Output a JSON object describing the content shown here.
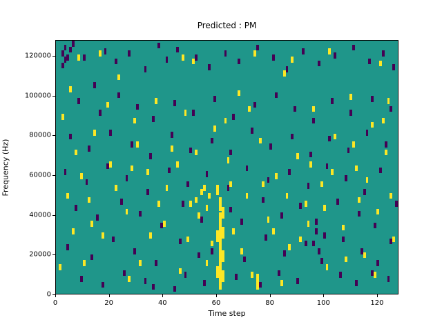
{
  "chart_data": {
    "type": "heatmap",
    "title": "Predicted : PM",
    "xlabel": "Time step",
    "ylabel": "Frequency (Hz)",
    "x_range": [
      0,
      128
    ],
    "y_range_hz": [
      0,
      128000
    ],
    "x_ticks": [
      0,
      20,
      40,
      60,
      80,
      100,
      120
    ],
    "y_ticks": [
      0,
      20000,
      40000,
      60000,
      80000,
      100000,
      120000
    ],
    "grid": false,
    "legend": "none",
    "colormap": "viridis",
    "colors": {
      "background": "#1f968a",
      "low": "#440154",
      "high": "#fde725"
    },
    "cell_format": "[time_step, freq_x1000Hz, height_x1000Hz(optional, default 3)]",
    "cells_low": [
      [
        2,
        120
      ],
      [
        3,
        123
      ],
      [
        4,
        118
      ],
      [
        5,
        122
      ],
      [
        3,
        117
      ],
      [
        6,
        125
      ],
      [
        2,
        114
      ],
      [
        10,
        118
      ],
      [
        14,
        104
      ],
      [
        18,
        121
      ],
      [
        22,
        116
      ],
      [
        27,
        120
      ],
      [
        33,
        112
      ],
      [
        38,
        124
      ],
      [
        41,
        117
      ],
      [
        45,
        122
      ],
      [
        52,
        118
      ],
      [
        57,
        113
      ],
      [
        63,
        120
      ],
      [
        68,
        116
      ],
      [
        75,
        123
      ],
      [
        81,
        118
      ],
      [
        86,
        112
      ],
      [
        92,
        121
      ],
      [
        98,
        115
      ],
      [
        104,
        119
      ],
      [
        111,
        123
      ],
      [
        117,
        116
      ],
      [
        122,
        120
      ],
      [
        126,
        113
      ],
      [
        8,
        96
      ],
      [
        16,
        90
      ],
      [
        23,
        99
      ],
      [
        30,
        93
      ],
      [
        36,
        87
      ],
      [
        44,
        95
      ],
      [
        51,
        90
      ],
      [
        59,
        97
      ],
      [
        66,
        88
      ],
      [
        74,
        94
      ],
      [
        82,
        99
      ],
      [
        89,
        92
      ],
      [
        96,
        86
      ],
      [
        103,
        96
      ],
      [
        110,
        90
      ],
      [
        118,
        97
      ],
      [
        125,
        92
      ],
      [
        5,
        78
      ],
      [
        12,
        72
      ],
      [
        20,
        80
      ],
      [
        28,
        74
      ],
      [
        35,
        68
      ],
      [
        43,
        79
      ],
      [
        50,
        71
      ],
      [
        58,
        76
      ],
      [
        65,
        70
      ],
      [
        73,
        81
      ],
      [
        80,
        73
      ],
      [
        88,
        78
      ],
      [
        95,
        69
      ],
      [
        102,
        77
      ],
      [
        109,
        71
      ],
      [
        116,
        80
      ],
      [
        123,
        74
      ],
      [
        3,
        60
      ],
      [
        11,
        55
      ],
      [
        19,
        63
      ],
      [
        26,
        57
      ],
      [
        34,
        50
      ],
      [
        42,
        61
      ],
      [
        49,
        54
      ],
      [
        56,
        59
      ],
      [
        64,
        52
      ],
      [
        71,
        62
      ],
      [
        79,
        56
      ],
      [
        87,
        60
      ],
      [
        94,
        53
      ],
      [
        101,
        63
      ],
      [
        108,
        57
      ],
      [
        115,
        50
      ],
      [
        121,
        61
      ],
      [
        7,
        42
      ],
      [
        15,
        37
      ],
      [
        24,
        45
      ],
      [
        31,
        39
      ],
      [
        39,
        33
      ],
      [
        47,
        44
      ],
      [
        54,
        36
      ],
      [
        65,
        41
      ],
      [
        69,
        35
      ],
      [
        77,
        46
      ],
      [
        84,
        38
      ],
      [
        91,
        43
      ],
      [
        97,
        30
      ],
      [
        105,
        45
      ],
      [
        113,
        39
      ],
      [
        119,
        33
      ],
      [
        127,
        44
      ],
      [
        4,
        22
      ],
      [
        13,
        17
      ],
      [
        21,
        26
      ],
      [
        29,
        20
      ],
      [
        37,
        14
      ],
      [
        46,
        25
      ],
      [
        53,
        18
      ],
      [
        58,
        20
      ],
      [
        70,
        16
      ],
      [
        78,
        27
      ],
      [
        85,
        19
      ],
      [
        93,
        24
      ],
      [
        99,
        15
      ],
      [
        107,
        26
      ],
      [
        114,
        20
      ],
      [
        120,
        14
      ],
      [
        125,
        25
      ],
      [
        9,
        6
      ],
      [
        17,
        3
      ],
      [
        25,
        9
      ],
      [
        33,
        5
      ],
      [
        48,
        8
      ],
      [
        55,
        4
      ],
      [
        67,
        7
      ],
      [
        76,
        3
      ],
      [
        83,
        9
      ],
      [
        90,
        5
      ],
      [
        98,
        20
      ],
      [
        96,
        24
      ],
      [
        100,
        28
      ],
      [
        97,
        35
      ],
      [
        106,
        8
      ],
      [
        112,
        4
      ],
      [
        118,
        9
      ],
      [
        124,
        6
      ],
      [
        36,
        2
      ],
      [
        44,
        1
      ]
    ],
    "cells_high": [
      [
        60,
        8,
        6
      ],
      [
        60,
        26,
        6
      ],
      [
        60,
        50,
        5
      ],
      [
        61,
        2,
        10
      ],
      [
        61,
        12,
        10
      ],
      [
        61,
        22,
        10
      ],
      [
        61,
        32,
        9
      ],
      [
        61,
        42,
        7
      ],
      [
        62,
        6,
        6
      ],
      [
        62,
        16,
        6
      ],
      [
        62,
        28,
        6
      ],
      [
        62,
        38,
        6
      ],
      [
        75,
        2,
        8
      ],
      [
        52,
        46
      ],
      [
        54,
        50
      ],
      [
        56,
        42
      ],
      [
        50,
        44
      ],
      [
        53,
        38
      ],
      [
        57,
        48
      ],
      [
        55,
        52
      ],
      [
        1,
        12
      ],
      [
        6,
        30
      ],
      [
        9,
        58
      ],
      [
        2,
        88
      ],
      [
        5,
        102
      ],
      [
        8,
        118
      ],
      [
        12,
        46
      ],
      [
        14,
        80
      ],
      [
        17,
        28
      ],
      [
        20,
        64
      ],
      [
        23,
        108
      ],
      [
        26,
        40
      ],
      [
        29,
        86
      ],
      [
        31,
        14
      ],
      [
        34,
        60
      ],
      [
        37,
        96
      ],
      [
        40,
        34
      ],
      [
        43,
        72
      ],
      [
        46,
        10
      ],
      [
        48,
        90
      ],
      [
        51,
        116
      ],
      [
        58,
        24
      ],
      [
        64,
        66
      ],
      [
        66,
        30
      ],
      [
        68,
        100
      ],
      [
        71,
        48
      ],
      [
        73,
        8
      ],
      [
        76,
        76
      ],
      [
        79,
        36
      ],
      [
        82,
        58
      ],
      [
        85,
        110
      ],
      [
        87,
        22
      ],
      [
        90,
        68
      ],
      [
        93,
        44
      ],
      [
        96,
        92
      ],
      [
        99,
        54
      ],
      [
        101,
        12
      ],
      [
        104,
        78
      ],
      [
        107,
        32
      ],
      [
        110,
        98
      ],
      [
        112,
        62
      ],
      [
        115,
        18
      ],
      [
        118,
        84
      ],
      [
        120,
        40
      ],
      [
        123,
        70
      ],
      [
        126,
        26
      ],
      [
        16,
        120
      ],
      [
        47,
        118
      ],
      [
        88,
        117
      ],
      [
        102,
        121
      ],
      [
        121,
        115
      ],
      [
        30,
        74
      ],
      [
        41,
        52
      ],
      [
        74,
        120
      ],
      [
        95,
        64
      ],
      [
        7,
        70
      ],
      [
        22,
        52
      ],
      [
        38,
        44
      ],
      [
        59,
        82
      ],
      [
        69,
        20
      ],
      [
        86,
        48
      ],
      [
        108,
        16
      ],
      [
        116,
        56
      ],
      [
        124,
        96
      ],
      [
        13,
        34
      ],
      [
        27,
        6
      ],
      [
        45,
        64
      ],
      [
        63,
        86
      ],
      [
        81,
        30
      ],
      [
        100,
        42
      ],
      [
        119,
        8
      ],
      [
        35,
        28
      ],
      [
        56,
        14
      ],
      [
        72,
        92
      ],
      [
        91,
        26
      ],
      [
        111,
        74
      ],
      [
        125,
        48
      ],
      [
        4,
        48
      ],
      [
        19,
        94
      ],
      [
        49,
        26
      ],
      [
        65,
        54
      ],
      [
        84,
        4
      ],
      [
        103,
        60
      ],
      [
        122,
        86
      ],
      [
        10,
        14
      ],
      [
        28,
        62
      ],
      [
        52,
        70
      ],
      [
        77,
        54
      ],
      [
        94,
        34
      ],
      [
        113,
        46
      ]
    ]
  }
}
